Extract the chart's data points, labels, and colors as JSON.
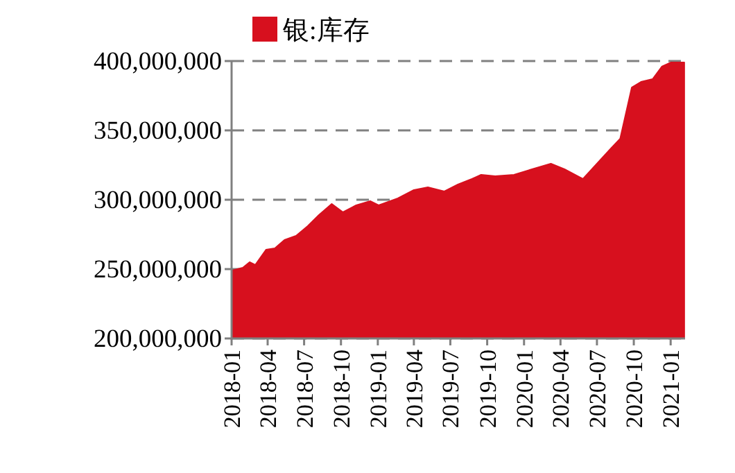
{
  "chart_data": {
    "type": "area",
    "legend": "top",
    "grid": "y",
    "xlim": [
      "2018-01-01",
      "2021-02-06"
    ],
    "ylim": [
      200000000,
      400000000
    ],
    "xticks": [
      "2018-01",
      "2018-04",
      "2018-07",
      "2018-10",
      "2019-01",
      "2019-04",
      "2019-07",
      "2019-10",
      "2020-01",
      "2020-04",
      "2020-07",
      "2020-10",
      "2021-01"
    ],
    "yticks": [
      {
        "value": 200000000,
        "label": "200,000,000"
      },
      {
        "value": 250000000,
        "label": "250,000,000"
      },
      {
        "value": 300000000,
        "label": "300,000,000"
      },
      {
        "value": 350000000,
        "label": "350,000,000"
      },
      {
        "value": 400000000,
        "label": "400,000,000"
      }
    ],
    "series": [
      {
        "name": "银:库存",
        "color": "#d7101e",
        "x": [
          "2018-01-02",
          "2018-01-29",
          "2018-02-15",
          "2018-03-01",
          "2018-03-28",
          "2018-04-19",
          "2018-05-13",
          "2018-06-11",
          "2018-07-10",
          "2018-08-07",
          "2018-09-08",
          "2018-10-06",
          "2018-11-08",
          "2018-12-13",
          "2019-01-03",
          "2019-02-20",
          "2019-04-01",
          "2019-05-06",
          "2019-06-16",
          "2019-07-20",
          "2019-08-24",
          "2019-09-16",
          "2019-10-21",
          "2019-12-07",
          "2020-01-21",
          "2020-03-08",
          "2020-04-11",
          "2020-05-27",
          "2020-07-01",
          "2020-08-05",
          "2020-08-28",
          "2020-09-26",
          "2020-10-19",
          "2020-11-17",
          "2020-12-10",
          "2021-01-02",
          "2021-02-04"
        ],
        "values": [
          249000000,
          251000000,
          255000000,
          253000000,
          264000000,
          265000000,
          271000000,
          274000000,
          281000000,
          289000000,
          297000000,
          291000000,
          296000000,
          299000000,
          296000000,
          301000000,
          307000000,
          309000000,
          306000000,
          311000000,
          315000000,
          318000000,
          317000000,
          318000000,
          322000000,
          326000000,
          322000000,
          315000000,
          326000000,
          337000000,
          344000000,
          381000000,
          385000000,
          387000000,
          396000000,
          399000000,
          399000000
        ]
      }
    ]
  }
}
